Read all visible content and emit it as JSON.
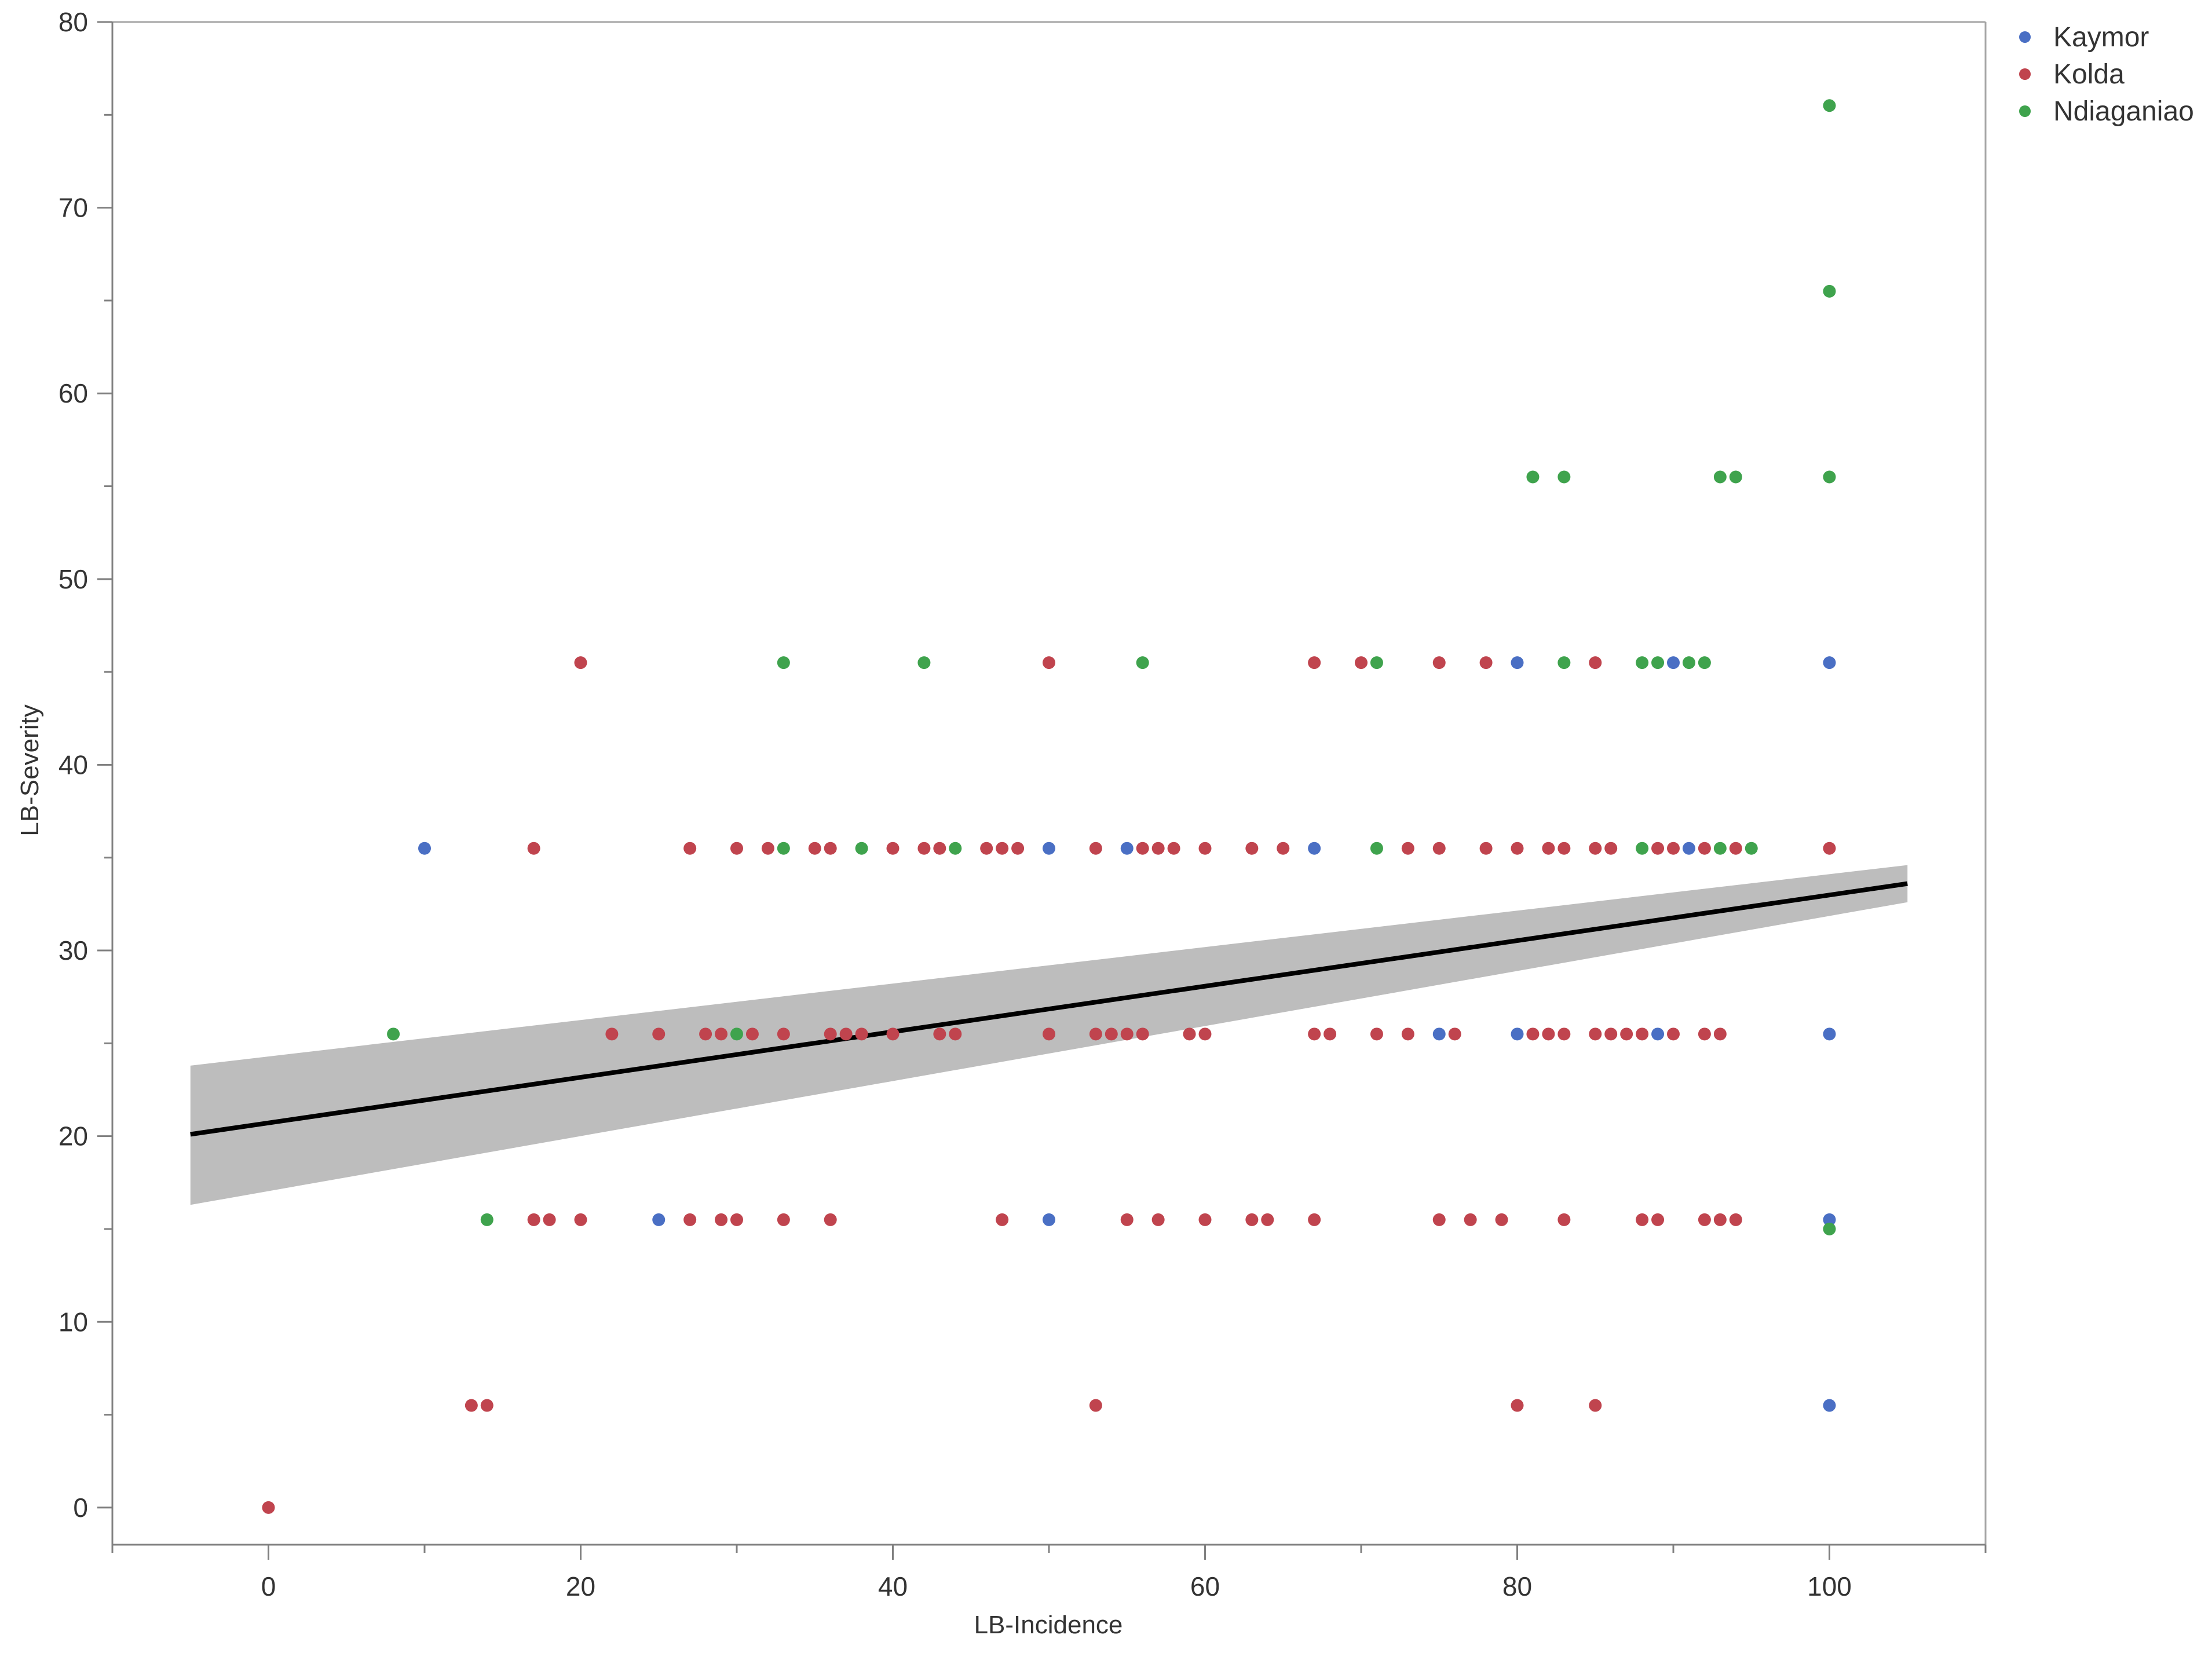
{
  "chart_data": {
    "type": "scatter",
    "xlabel": "LB-Incidence",
    "ylabel": "LB-Severity",
    "xlim": [
      -10,
      110
    ],
    "ylim": [
      -2,
      80
    ],
    "xticks": [
      0,
      20,
      40,
      60,
      80,
      100
    ],
    "yticks": [
      0,
      10,
      20,
      30,
      40,
      50,
      60,
      70,
      80
    ],
    "legend_position": "top-right",
    "grid": false,
    "regression": {
      "x": [
        -5,
        105
      ],
      "y": [
        20.1,
        33.6
      ],
      "ci_lower": [
        16.3,
        32.6
      ],
      "ci_upper": [
        23.8,
        34.6
      ],
      "line_color": "#000000",
      "band_color": "#bdbdbd"
    },
    "series": [
      {
        "name": "Kaymor",
        "color": "#4a6fc4",
        "points": [
          [
            10,
            35.5
          ],
          [
            25,
            15.5
          ],
          [
            50,
            35.5
          ],
          [
            50,
            15.5
          ],
          [
            55,
            35.5
          ],
          [
            67,
            35.5
          ],
          [
            75,
            25.5
          ],
          [
            80,
            45.5
          ],
          [
            80,
            25.5
          ],
          [
            89,
            25.5
          ],
          [
            90,
            45.5
          ],
          [
            91,
            35.5
          ],
          [
            100,
            45.5
          ],
          [
            100,
            25.5
          ],
          [
            100,
            15.5
          ],
          [
            100,
            5.5
          ]
        ]
      },
      {
        "name": "Kolda",
        "color": "#c0444e",
        "points": [
          [
            0,
            0
          ],
          [
            13,
            5.5
          ],
          [
            14,
            5.5
          ],
          [
            17,
            15.5
          ],
          [
            18,
            15.5
          ],
          [
            20,
            15.5
          ],
          [
            17,
            35.5
          ],
          [
            20,
            45.5
          ],
          [
            22,
            25.5
          ],
          [
            25,
            25.5
          ],
          [
            27,
            15.5
          ],
          [
            27,
            35.5
          ],
          [
            28,
            25.5
          ],
          [
            29,
            25.5
          ],
          [
            29,
            15.5
          ],
          [
            30,
            15.5
          ],
          [
            30,
            35.5
          ],
          [
            31,
            25.5
          ],
          [
            32,
            35.5
          ],
          [
            33,
            25.5
          ],
          [
            33,
            15.5
          ],
          [
            35,
            35.5
          ],
          [
            36,
            35.5
          ],
          [
            36,
            25.5
          ],
          [
            36,
            15.5
          ],
          [
            37,
            25.5
          ],
          [
            38,
            25.5
          ],
          [
            40,
            35.5
          ],
          [
            40,
            25.5
          ],
          [
            42,
            35.5
          ],
          [
            43,
            35.5
          ],
          [
            43,
            25.5
          ],
          [
            44,
            25.5
          ],
          [
            46,
            35.5
          ],
          [
            47,
            35.5
          ],
          [
            47,
            15.5
          ],
          [
            48,
            35.5
          ],
          [
            50,
            45.5
          ],
          [
            50,
            25.5
          ],
          [
            53,
            35.5
          ],
          [
            53,
            25.5
          ],
          [
            53,
            5.5
          ],
          [
            54,
            25.5
          ],
          [
            55,
            25.5
          ],
          [
            55,
            15.5
          ],
          [
            56,
            35.5
          ],
          [
            56,
            25.5
          ],
          [
            57,
            35.5
          ],
          [
            57,
            15.5
          ],
          [
            58,
            35.5
          ],
          [
            59,
            25.5
          ],
          [
            60,
            35.5
          ],
          [
            60,
            25.5
          ],
          [
            60,
            15.5
          ],
          [
            63,
            35.5
          ],
          [
            63,
            15.5
          ],
          [
            64,
            15.5
          ],
          [
            65,
            35.5
          ],
          [
            67,
            45.5
          ],
          [
            67,
            25.5
          ],
          [
            67,
            15.5
          ],
          [
            68,
            25.5
          ],
          [
            70,
            45.5
          ],
          [
            71,
            25.5
          ],
          [
            73,
            35.5
          ],
          [
            73,
            25.5
          ],
          [
            75,
            45.5
          ],
          [
            75,
            35.5
          ],
          [
            75,
            15.5
          ],
          [
            76,
            25.5
          ],
          [
            77,
            15.5
          ],
          [
            78,
            45.5
          ],
          [
            78,
            35.5
          ],
          [
            79,
            15.5
          ],
          [
            80,
            35.5
          ],
          [
            80,
            5.5
          ],
          [
            81,
            25.5
          ],
          [
            82,
            35.5
          ],
          [
            82,
            25.5
          ],
          [
            83,
            35.5
          ],
          [
            83,
            25.5
          ],
          [
            83,
            15.5
          ],
          [
            85,
            45.5
          ],
          [
            85,
            35.5
          ],
          [
            85,
            25.5
          ],
          [
            85,
            5.5
          ],
          [
            86,
            35.5
          ],
          [
            86,
            25.5
          ],
          [
            87,
            25.5
          ],
          [
            88,
            25.5
          ],
          [
            88,
            15.5
          ],
          [
            89,
            35.5
          ],
          [
            89,
            15.5
          ],
          [
            90,
            35.5
          ],
          [
            90,
            25.5
          ],
          [
            92,
            35.5
          ],
          [
            92,
            25.5
          ],
          [
            92,
            15.5
          ],
          [
            93,
            25.5
          ],
          [
            93,
            15.5
          ],
          [
            94,
            35.5
          ],
          [
            94,
            15.5
          ],
          [
            100,
            35.5
          ]
        ]
      },
      {
        "name": "Ndiaganiao",
        "color": "#3fa34d",
        "points": [
          [
            8,
            25.5
          ],
          [
            14,
            15.5
          ],
          [
            30,
            25.5
          ],
          [
            33,
            45.5
          ],
          [
            33,
            35.5
          ],
          [
            38,
            35.5
          ],
          [
            42,
            45.5
          ],
          [
            44,
            35.5
          ],
          [
            56,
            45.5
          ],
          [
            71,
            45.5
          ],
          [
            71,
            35.5
          ],
          [
            81,
            55.5
          ],
          [
            83,
            55.5
          ],
          [
            83,
            45.5
          ],
          [
            88,
            45.5
          ],
          [
            88,
            35.5
          ],
          [
            89,
            45.5
          ],
          [
            91,
            45.5
          ],
          [
            92,
            45.5
          ],
          [
            93,
            55.5
          ],
          [
            93,
            35.5
          ],
          [
            94,
            55.5
          ],
          [
            95,
            35.5
          ],
          [
            100,
            75.5
          ],
          [
            100,
            65.5
          ],
          [
            100,
            55.5
          ],
          [
            100,
            15
          ]
        ]
      }
    ]
  }
}
